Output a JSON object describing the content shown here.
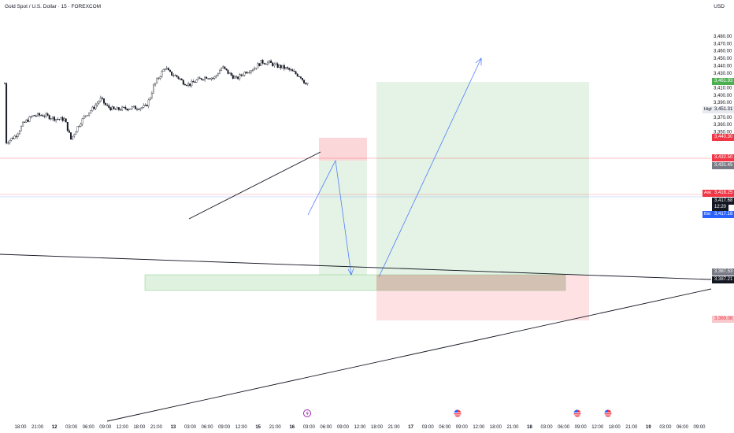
{
  "header": {
    "symbol_title": "Gold Spot / U.S. Dollar · 15 · FOREXCOM",
    "currency": "USD"
  },
  "price_axis": {
    "ticks": [
      "3,480.00",
      "3,470.00",
      "3,460.00",
      "3,450.00",
      "3,440.00",
      "3,430.00",
      "3,420.00",
      "3,410.00",
      "3,400.00",
      "3,390.00",
      "3,380.00",
      "3,370.00",
      "3,360.00",
      "3,350.00",
      "3,340.00"
    ]
  },
  "time_axis": {
    "labels": [
      "18:00",
      "21:00",
      "12",
      "03:00",
      "06:00",
      "09:00",
      "12:00",
      "18:00",
      "21:00",
      "13",
      "03:00",
      "06:00",
      "09:00",
      "12:00",
      "15",
      "21:00",
      "16",
      "03:00",
      "06:00",
      "09:00",
      "12:00",
      "18:00",
      "21:00",
      "17",
      "03:00",
      "06:00",
      "09:00",
      "12:00",
      "18:00",
      "21:00",
      "18",
      "03:00",
      "06:00",
      "09:00",
      "12:00",
      "18:00",
      "21:00",
      "19",
      "03:00",
      "06:00",
      "09:00"
    ]
  },
  "price_tags": {
    "tp_target": "3,461.93",
    "high_label": "High",
    "high_value": "3,451.31",
    "stop_level": "3,440.30",
    "entry_level": "3,432.50",
    "grey_level": "3,431.45",
    "ask_label": "Ask",
    "ask_value": "3,418.25",
    "last_value": "3,417.68",
    "countdown": "12:20",
    "bid_label": "Bid",
    "bid_value": "3,417.18",
    "support_a": "3,387.53",
    "support_b": "3,387.21",
    "stop_low": "3,369.08"
  },
  "colors": {
    "up_candle": "#ffffff",
    "down_candle": "#131722",
    "profit_zone": "#4caf50",
    "loss_zone": "#f23645",
    "projection_arrow": "#2962ff",
    "trendline": "#131722"
  },
  "icons": {
    "event_flash": "lightning-icon",
    "us_flag_events": "us-flag-icon"
  }
}
